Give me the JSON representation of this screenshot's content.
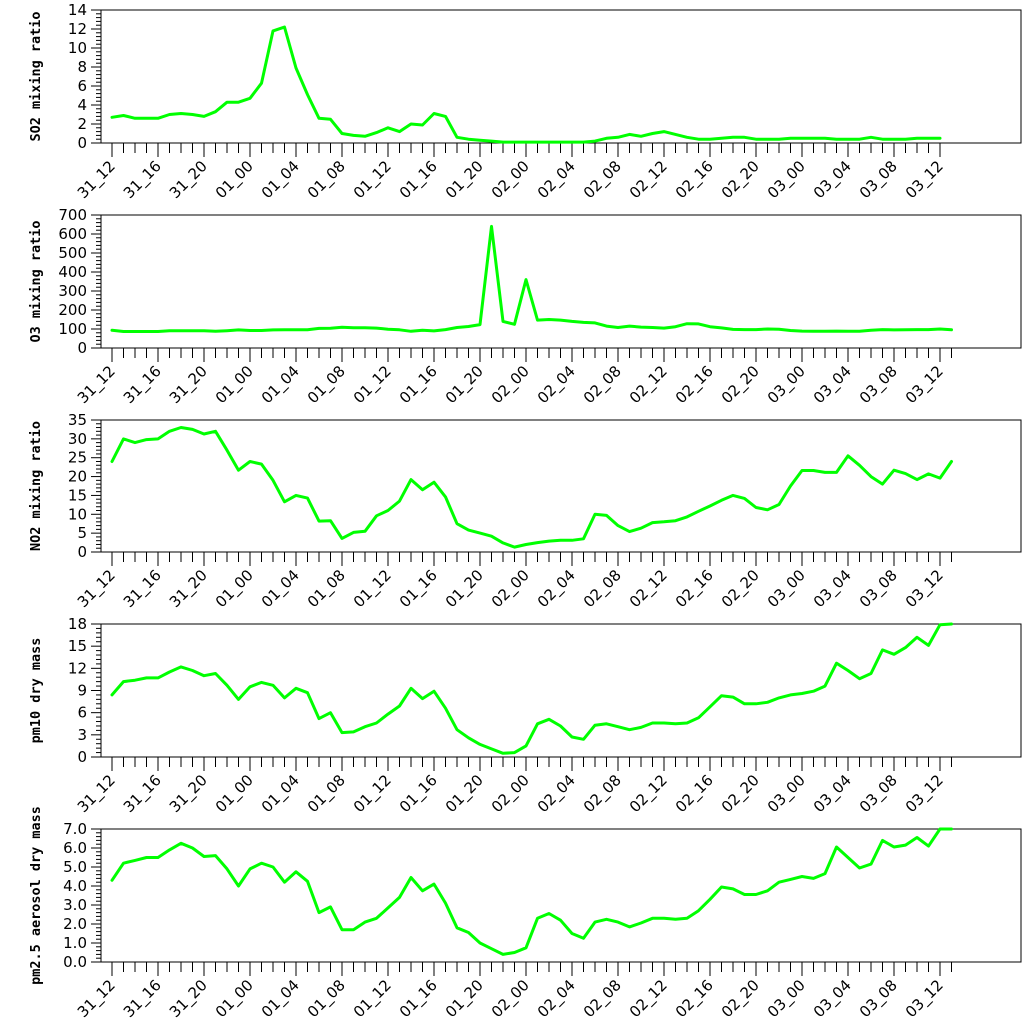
{
  "colors": {
    "line": "#00ff00",
    "axis": "#000000",
    "background": "#ffffff"
  },
  "chart_data": [
    {
      "type": "line",
      "ylabel": "SO2 mixing ratio",
      "ylim": [
        0,
        14
      ],
      "yticks": [
        0,
        2,
        4,
        6,
        8,
        10,
        12,
        14
      ],
      "ytick_labels": [
        "0",
        "2",
        "4",
        "6",
        "8",
        "10",
        "12",
        "14"
      ],
      "xtick_labels": [
        "31_12",
        "31_16",
        "31_20",
        "01_00",
        "01_04",
        "01_08",
        "01_12",
        "01_16",
        "01_20",
        "02_00",
        "02_04",
        "02_08",
        "02_12",
        "02_16",
        "02_20",
        "03_00",
        "03_04",
        "03_08",
        "03_12"
      ],
      "grid": false,
      "series": [
        {
          "values": [
            2.7,
            2.9,
            2.6,
            2.6,
            2.6,
            3.0,
            3.1,
            3.0,
            2.8,
            3.3,
            4.3,
            4.3,
            4.7,
            6.3,
            11.8,
            12.2,
            7.9,
            5.1,
            2.6,
            2.5,
            1.0,
            0.8,
            0.7,
            1.1,
            1.6,
            1.2,
            2.0,
            1.9,
            3.1,
            2.8,
            0.6,
            0.4,
            0.3,
            0.2,
            0.1,
            0.1,
            0.1,
            0.1,
            0.1,
            0.1,
            0.1,
            0.1,
            0.2,
            0.5,
            0.6,
            0.9,
            0.7,
            1.0,
            1.2,
            0.9,
            0.6,
            0.4,
            0.4,
            0.5,
            0.6,
            0.6,
            0.4,
            0.4,
            0.4,
            0.5,
            0.5,
            0.5,
            0.5,
            0.4,
            0.4,
            0.4,
            0.6,
            0.4,
            0.4,
            0.4,
            0.5,
            0.5,
            0.5
          ]
        }
      ]
    },
    {
      "type": "line",
      "ylabel": "O3 mixing ratio",
      "ylim": [
        0,
        700
      ],
      "yticks": [
        0,
        100,
        200,
        300,
        400,
        500,
        600,
        700
      ],
      "ytick_labels": [
        "0",
        "100",
        "200",
        "300",
        "400",
        "500",
        "600",
        "700"
      ],
      "xtick_labels": [
        "31_12",
        "31_16",
        "31_20",
        "01_00",
        "01_04",
        "01_08",
        "01_12",
        "01_16",
        "01_20",
        "02_00",
        "02_04",
        "02_08",
        "02_12",
        "02_16",
        "02_20",
        "03_00",
        "03_04",
        "03_08",
        "03_12"
      ],
      "grid": false,
      "series": [
        {
          "values": [
            93,
            87,
            87,
            87,
            87,
            91,
            91,
            91,
            91,
            88,
            91,
            95,
            92,
            92,
            95,
            96,
            96,
            96,
            103,
            104,
            109,
            107,
            107,
            105,
            99,
            96,
            88,
            93,
            90,
            97,
            108,
            113,
            123,
            640,
            140,
            125,
            360,
            147,
            150,
            147,
            140,
            135,
            132,
            115,
            108,
            115,
            110,
            108,
            105,
            112,
            128,
            127,
            112,
            106,
            98,
            97,
            97,
            100,
            99,
            92,
            89,
            88,
            88,
            89,
            88,
            88,
            93,
            97,
            95,
            96,
            97,
            97,
            100,
            96
          ]
        }
      ]
    },
    {
      "type": "line",
      "ylabel": "NO2 mixing ratio",
      "ylim": [
        0,
        35
      ],
      "yticks": [
        0,
        5,
        10,
        15,
        20,
        25,
        30,
        35
      ],
      "ytick_labels": [
        "0",
        "5",
        "10",
        "15",
        "20",
        "25",
        "30",
        "35"
      ],
      "xtick_labels": [
        "31_12",
        "31_16",
        "31_20",
        "01_00",
        "01_04",
        "01_08",
        "01_12",
        "01_16",
        "01_20",
        "02_00",
        "02_04",
        "02_08",
        "02_12",
        "02_16",
        "02_20",
        "03_00",
        "03_04",
        "03_08",
        "03_12"
      ],
      "grid": false,
      "series": [
        {
          "values": [
            24,
            30,
            29,
            29.8,
            30,
            32,
            33,
            32.5,
            31.3,
            32,
            27,
            21.7,
            24,
            23.3,
            19,
            13.3,
            15,
            14.3,
            8.2,
            8.3,
            3.6,
            5.2,
            5.5,
            9.6,
            11,
            13.5,
            19.2,
            16.5,
            18.5,
            14.6,
            7.5,
            5.8,
            5,
            4.2,
            2.4,
            1.3,
            2,
            2.5,
            2.9,
            3.1,
            3.1,
            3.5,
            10,
            9.7,
            7,
            5.4,
            6.3,
            7.8,
            8,
            8.3,
            9.3,
            10.8,
            12.2,
            13.7,
            15,
            14.2,
            11.8,
            11.2,
            12.6,
            17.5,
            21.6,
            21.6,
            21.1,
            21.1,
            25.5,
            23,
            20,
            18,
            21.7,
            20.8,
            19.2,
            20.7,
            19.6,
            24
          ]
        }
      ]
    },
    {
      "type": "line",
      "ylabel": "pm10 dry mass",
      "ylim": [
        0,
        18
      ],
      "yticks": [
        0,
        3,
        6,
        9,
        12,
        15,
        18
      ],
      "ytick_labels": [
        "0",
        "3",
        "6",
        "9",
        "12",
        "15",
        "18"
      ],
      "xtick_labels": [
        "31_12",
        "31_16",
        "31_20",
        "01_00",
        "01_04",
        "01_08",
        "01_12",
        "01_16",
        "01_20",
        "02_00",
        "02_04",
        "02_08",
        "02_12",
        "02_16",
        "02_20",
        "03_00",
        "03_04",
        "03_08",
        "03_12"
      ],
      "grid": false,
      "series": [
        {
          "values": [
            8.4,
            10.2,
            10.4,
            10.7,
            10.7,
            11.5,
            12.2,
            11.7,
            11,
            11.3,
            9.7,
            7.8,
            9.5,
            10.1,
            9.7,
            8,
            9.3,
            8.7,
            5.2,
            6,
            3.3,
            3.4,
            4.1,
            4.6,
            5.8,
            6.9,
            9.3,
            7.9,
            8.9,
            6.6,
            3.7,
            2.6,
            1.7,
            1.1,
            0.5,
            0.6,
            1.5,
            4.5,
            5.1,
            4.2,
            2.7,
            2.4,
            4.3,
            4.5,
            4.1,
            3.7,
            4,
            4.6,
            4.6,
            4.5,
            4.6,
            5.3,
            6.8,
            8.3,
            8.1,
            7.2,
            7.2,
            7.4,
            8,
            8.4,
            8.6,
            8.9,
            9.6,
            12.7,
            11.7,
            10.6,
            11.3,
            14.5,
            13.9,
            14.8,
            16.2,
            15.1,
            17.9,
            18
          ]
        }
      ]
    },
    {
      "type": "line",
      "ylabel": "pm2.5 aerosol dry mass",
      "ylim": [
        0,
        7
      ],
      "yticks": [
        0,
        1,
        2,
        3,
        4,
        5,
        6,
        7
      ],
      "ytick_labels": [
        "0.0",
        "1.0",
        "2.0",
        "3.0",
        "4.0",
        "5.0",
        "6.0",
        "7.0"
      ],
      "xtick_labels": [
        "31_12",
        "31_16",
        "31_20",
        "01_00",
        "01_04",
        "01_08",
        "01_12",
        "01_16",
        "01_20",
        "02_00",
        "02_04",
        "02_08",
        "02_12",
        "02_16",
        "02_20",
        "03_00",
        "03_04",
        "03_08",
        "03_12"
      ],
      "grid": false,
      "series": [
        {
          "values": [
            4.3,
            5.2,
            5.35,
            5.5,
            5.5,
            5.9,
            6.25,
            6,
            5.55,
            5.6,
            4.9,
            4,
            4.9,
            5.2,
            5,
            4.2,
            4.75,
            4.25,
            2.6,
            2.9,
            1.7,
            1.7,
            2.1,
            2.3,
            2.85,
            3.4,
            4.45,
            3.75,
            4.1,
            3.1,
            1.8,
            1.55,
            1,
            0.7,
            0.4,
            0.5,
            0.75,
            2.3,
            2.55,
            2.2,
            1.5,
            1.25,
            2.1,
            2.25,
            2.1,
            1.85,
            2.05,
            2.3,
            2.3,
            2.25,
            2.3,
            2.7,
            3.3,
            3.95,
            3.85,
            3.55,
            3.55,
            3.75,
            4.2,
            4.35,
            4.5,
            4.4,
            4.65,
            6.05,
            5.5,
            4.95,
            5.15,
            6.4,
            6.05,
            6.15,
            6.55,
            6.1,
            7,
            7
          ]
        }
      ]
    }
  ]
}
